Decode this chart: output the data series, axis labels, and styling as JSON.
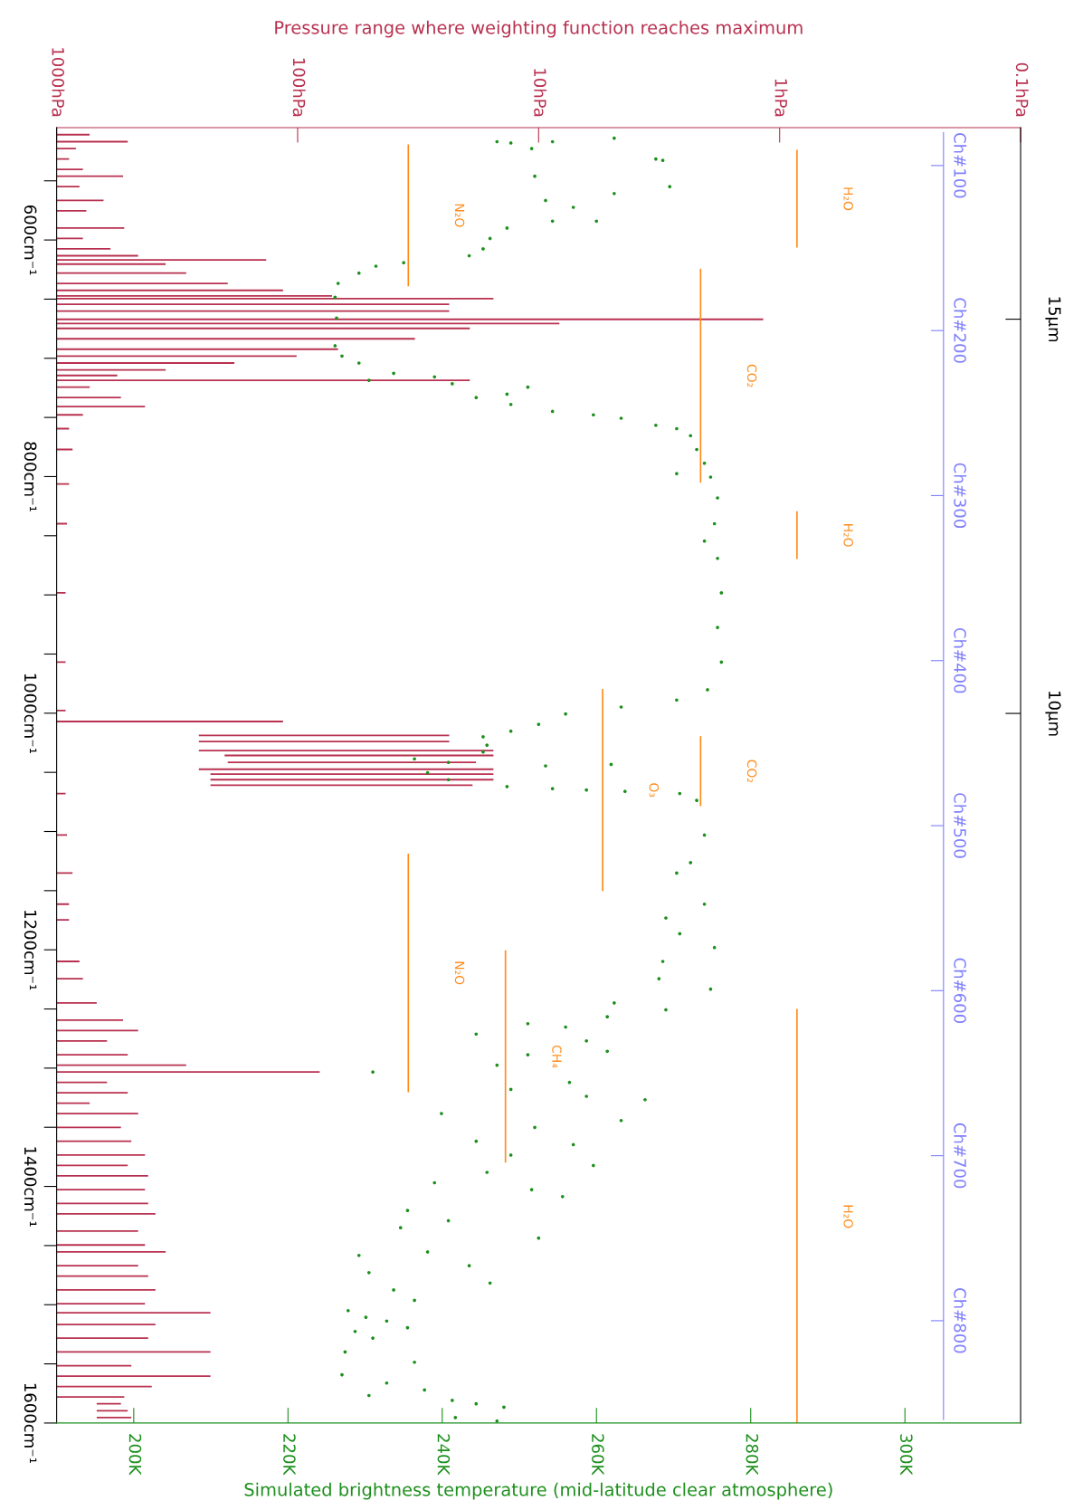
{
  "chart_data": {
    "type": "scatter",
    "orientation": "horizontal",
    "log": "x2",
    "x2label": "Pressure range where weighting function reaches maximum",
    "xlabel": "Simulated brightness temperature (mid-latitude clear atmosphere)",
    "xlim": [
      190,
      315
    ],
    "xticks": [
      {
        "value": 200,
        "label": "200K"
      },
      {
        "value": 220,
        "label": "220K"
      },
      {
        "value": 240,
        "label": "240K"
      },
      {
        "value": 260,
        "label": "260K"
      },
      {
        "value": 280,
        "label": "280K"
      },
      {
        "value": 300,
        "label": "300K"
      }
    ],
    "x2lim": [
      1000,
      0.1
    ],
    "x2ticks": [
      {
        "value": 1000,
        "label": "1000hPa"
      },
      {
        "value": 100,
        "label": "100hPa"
      },
      {
        "value": 10,
        "label": "10hPa"
      },
      {
        "value": 1,
        "label": "1hPa"
      },
      {
        "value": 0.1,
        "label": "0.1hPa"
      }
    ],
    "ylim": [
      1600,
      505
    ],
    "yticks": [
      {
        "value": 550,
        "label": null
      },
      {
        "value": 600,
        "label": "600cm⁻¹"
      },
      {
        "value": 650,
        "label": null
      },
      {
        "value": 700,
        "label": null
      },
      {
        "value": 750,
        "label": null
      },
      {
        "value": 800,
        "label": "800cm⁻¹"
      },
      {
        "value": 850,
        "label": null
      },
      {
        "value": 900,
        "label": null
      },
      {
        "value": 950,
        "label": null
      },
      {
        "value": 1000,
        "label": "1000cm⁻¹"
      },
      {
        "value": 1050,
        "label": null
      },
      {
        "value": 1100,
        "label": null
      },
      {
        "value": 1150,
        "label": null
      },
      {
        "value": 1200,
        "label": "1200cm⁻¹"
      },
      {
        "value": 1250,
        "label": null
      },
      {
        "value": 1300,
        "label": null
      },
      {
        "value": 1350,
        "label": null
      },
      {
        "value": 1400,
        "label": "1400cm⁻¹"
      },
      {
        "value": 1450,
        "label": null
      },
      {
        "value": 1500,
        "label": null
      },
      {
        "value": 1550,
        "label": null
      },
      {
        "value": 1600,
        "label": "1600cm⁻¹"
      }
    ],
    "y2lim": [
      862,
      77
    ],
    "y2ticks": [
      {
        "value": 100,
        "label": "Ch#100"
      },
      {
        "value": 200,
        "label": "Ch#200"
      },
      {
        "value": 300,
        "label": "Ch#300"
      },
      {
        "value": 400,
        "label": "Ch#400"
      },
      {
        "value": 500,
        "label": "Ch#500"
      },
      {
        "value": 600,
        "label": "Ch#600"
      },
      {
        "value": 700,
        "label": "Ch#700"
      },
      {
        "value": 800,
        "label": "Ch#800"
      }
    ],
    "y3lim": [
      1.0,
      17.43
    ],
    "y3ticks": [
      {
        "value": 15,
        "label": "15μm"
      },
      {
        "value": 10,
        "label": "10μm"
      }
    ],
    "series": [
      {
        "type": "bar",
        "axis": "x2",
        "color": "#b8304f",
        "x": [
          511.0,
          516.9,
          522.7,
          531.5,
          540.3,
          546.1,
          554.9,
          566.6,
          575.3,
          589.9,
          598.7,
          607.5,
          613.3,
          616.8,
          620.4,
          628.0,
          636.7,
          642.6,
          647.3,
          649.6,
          654.3,
          660.1,
          667.1,
          670.6,
          674.7,
          683.5,
          692.3,
          698.1,
          704.0,
          709.8,
          714.5,
          718.6,
          724.4,
          733.2,
          740.8,
          747.8,
          759.5,
          777.1,
          806.3,
          839.8,
          898.3,
          956.8,
          997.7,
          1007.0,
          1018.8,
          1024.0,
          1031.6,
          1035.7,
          1041.6,
          1047.4,
          1051.5,
          1056.2,
          1060.9,
          1067.9,
          1103.0,
          1135.1,
          1161.4,
          1174.7,
          1209.8,
          1224.4,
          1244.9,
          1259.5,
          1268.2,
          1277.0,
          1288.7,
          1297.5,
          1303.3,
          1312.1,
          1320.9,
          1329.6,
          1338.4,
          1350.1,
          1361.8,
          1373.5,
          1382.3,
          1391.0,
          1402.7,
          1414.4,
          1423.2,
          1437.8,
          1449.5,
          1455.4,
          1467.0,
          1475.8,
          1487.5,
          1499.2,
          1506.8,
          1516.7,
          1528.2,
          1539.9,
          1551.6,
          1560.3,
          1569.1,
          1577.9,
          1583.7,
          1589.6,
          1595.4
        ],
        "base": [
          1000,
          1000,
          1000,
          1000,
          1000,
          1000,
          1000,
          1000,
          1000,
          1000,
          1000,
          1000,
          1000,
          1000,
          1000,
          1000,
          1000,
          1000,
          1000,
          1000,
          1000,
          1000,
          1000,
          1000,
          1000,
          1000,
          1000,
          1000,
          1000,
          1000,
          1000,
          1000,
          1000,
          1000,
          1000,
          1000,
          1000,
          1000,
          1000,
          1000,
          1000,
          1000,
          1000,
          1000,
          257,
          257,
          257,
          201,
          195,
          257,
          230,
          230,
          230,
          1000,
          1000,
          1000,
          1000,
          1000,
          1000,
          1000,
          1000,
          1000,
          1000,
          1000,
          1000,
          1000,
          1000,
          1000,
          1000,
          1000,
          1000,
          1000,
          1000,
          1000,
          1000,
          1000,
          1000,
          1000,
          1000,
          1000,
          1000,
          1000,
          1000,
          1000,
          1000,
          1000,
          1000,
          1000,
          1000,
          1000,
          1000,
          1000,
          1000,
          1000,
          682,
          682,
          682
        ],
        "values": [
          -270,
          -493,
          -168,
          -112,
          -222,
          -470,
          -196,
          -361,
          -247,
          -476,
          -222,
          -402,
          -541,
          -865,
          -647,
          -710,
          -805,
          -885,
          -928,
          -984.6,
          -976.5,
          -976.5,
          -998.83,
          -991.8,
          -980.7,
          -967.4,
          -932,
          -899,
          -817,
          -647,
          -440,
          -980.7,
          -271,
          -459,
          -570,
          -222,
          -112,
          -141,
          -112,
          -94,
          -82,
          -82,
          -82,
          -885,
          -233.5,
          -233.5,
          -241.6,
          -185.6,
          -176.8,
          -241.6,
          -214.6,
          -214.6,
          -211.2,
          -82,
          -94,
          -141,
          -112,
          -112,
          -196,
          -222,
          -318,
          -470,
          -541,
          -382,
          -493,
          -710,
          -919,
          -382,
          -493,
          -271,
          -541,
          -459,
          -510,
          -570,
          -493,
          -583,
          -570,
          -583,
          -611,
          -541,
          -570,
          -647,
          -541,
          -583,
          -611,
          -570,
          -770,
          -611,
          -583,
          -770,
          -510,
          -770,
          -597,
          -476,
          -141,
          -175,
          -192
        ]
      },
      {
        "color": "#1c8f1c",
        "marker": "circle",
        "x": [
          513.9,
          516.9,
          518.0,
          516.9,
          522.7,
          531.5,
          532.7,
          546.1,
          554.9,
          560.7,
          566.6,
          572.4,
          584.1,
          584.1,
          589.9,
          598.7,
          607.5,
          613.3,
          619.2,
          622.1,
          628.0,
          636.7,
          648.4,
          666.0,
          689.4,
          698.1,
          704.0,
          712.7,
          715.7,
          718.6,
          721.5,
          724.4,
          730.3,
          733.2,
          739.0,
          744.9,
          747.8,
          750.7,
          756.6,
          759.5,
          765.4,
          777.1,
          788.7,
          797.5,
          800.4,
          818.0,
          839.8,
          854.5,
          869.1,
          898.3,
          927.5,
          956.8,
          980.2,
          988.9,
          994.8,
          1000.6,
          1009.4,
          1015.2,
          1019.9,
          1027.0,
          1032.8,
          1038.6,
          1041.6,
          1043.3,
          1044.5,
          1050.3,
          1056.2,
          1062.0,
          1063.8,
          1064.9,
          1066.1,
          1067.9,
          1073.7,
          1103.0,
          1126.3,
          1135.1,
          1161.4,
          1173.1,
          1186.4,
          1198.1,
          1209.8,
          1224.4,
          1233.2,
          1244.9,
          1250.7,
          1256.6,
          1262.4,
          1265.3,
          1271.2,
          1277.0,
          1285.8,
          1288.7,
          1297.5,
          1303.3,
          1312.1,
          1318.0,
          1323.8,
          1326.7,
          1338.4,
          1344.3,
          1350.1,
          1361.8,
          1364.7,
          1373.5,
          1382.3,
          1388.1,
          1396.9,
          1402.7,
          1408.6,
          1420.3,
          1429.0,
          1434.9,
          1443.7,
          1455.4,
          1458.3,
          1467.0,
          1472.9,
          1481.7,
          1487.5,
          1496.3,
          1505.0,
          1510.6,
          1513.8,
          1519.4,
          1522.6,
          1528.2,
          1539.9,
          1548.6,
          1559.2,
          1566.2,
          1572.0,
          1576.7,
          1580.8,
          1583.7,
          1586.6,
          1595.4,
          1598.3
        ],
        "values": [
          262.3,
          247.1,
          248.9,
          254.3,
          251.6,
          267.7,
          268.6,
          252.0,
          269.5,
          262.3,
          253.4,
          257.0,
          254.3,
          260.0,
          248.4,
          246.2,
          245.3,
          243.5,
          235.0,
          231.4,
          229.2,
          226.5,
          226.1,
          226.3,
          226.1,
          227.0,
          229.2,
          233.7,
          239.0,
          230.5,
          241.3,
          251.1,
          248.4,
          244.4,
          248.9,
          254.3,
          259.6,
          263.2,
          267.7,
          270.4,
          272.2,
          273.0,
          274.0,
          270.4,
          274.8,
          275.7,
          275.3,
          274.0,
          275.7,
          276.2,
          275.7,
          276.2,
          274.4,
          270.4,
          263.2,
          256.0,
          252.5,
          248.9,
          245.3,
          245.8,
          245.3,
          236.4,
          240.8,
          261.9,
          253.4,
          238.1,
          240.8,
          248.4,
          254.3,
          258.7,
          263.7,
          270.8,
          273.0,
          274.0,
          272.2,
          270.4,
          274.0,
          269.0,
          270.8,
          275.3,
          268.6,
          268.1,
          274.8,
          262.3,
          269.0,
          261.4,
          251.1,
          256.0,
          244.4,
          258.7,
          261.4,
          251.1,
          247.1,
          231.0,
          256.5,
          248.9,
          258.7,
          266.3,
          239.9,
          263.2,
          252.0,
          244.4,
          257.0,
          248.9,
          259.6,
          245.8,
          239.0,
          251.6,
          255.6,
          235.5,
          240.8,
          234.6,
          252.5,
          238.1,
          229.2,
          243.5,
          230.5,
          246.2,
          233.7,
          236.4,
          227.8,
          230.1,
          232.8,
          235.5,
          228.7,
          231.0,
          227.4,
          236.4,
          227.0,
          232.8,
          237.7,
          230.5,
          241.3,
          244.4,
          248.0,
          241.7,
          247.1
        ]
      },
      {
        "type": "line",
        "name": "N₂O",
        "color": "#ff8c1a",
        "x": [
          519.8,
          638.5
        ],
        "values": [
          235.6,
          235.6
        ]
      },
      {
        "type": "line",
        "name": "H₂O",
        "color": "#ff8c1a",
        "x": [
          524.5,
          605.7
        ],
        "values": [
          286.0,
          286.0
        ]
      },
      {
        "type": "line",
        "name": "CO₂",
        "color": "#ff8c1a",
        "x": [
          625.0,
          804.5
        ],
        "values": [
          273.5,
          273.5
        ]
      },
      {
        "type": "line",
        "name": "H₂O",
        "color": "#ff8c1a",
        "x": [
          829.9,
          869.1
        ],
        "values": [
          286.0,
          286.0
        ]
      },
      {
        "type": "line",
        "name": "O₃",
        "color": "#ff8c1a",
        "x": [
          980.2,
          1149.7
        ],
        "values": [
          260.8,
          260.8
        ]
      },
      {
        "type": "line",
        "name": "CO₂",
        "color": "#ff8c1a",
        "x": [
          1020.0,
          1078.0
        ],
        "values": [
          273.5,
          273.5
        ]
      },
      {
        "type": "line",
        "name": "N₂O",
        "color": "#ff8c1a",
        "x": [
          1119.3,
          1319.7
        ],
        "values": [
          235.6,
          235.6
        ]
      },
      {
        "type": "line",
        "name": "CH₄",
        "color": "#ff8c1a",
        "x": [
          1201.0,
          1379.3
        ],
        "values": [
          248.2,
          248.2
        ]
      },
      {
        "type": "line",
        "name": "H₂O",
        "color": "#ff8c1a",
        "x": [
          1250.7,
          1600.0
        ],
        "values": [
          286.0,
          286.0
        ]
      }
    ]
  }
}
